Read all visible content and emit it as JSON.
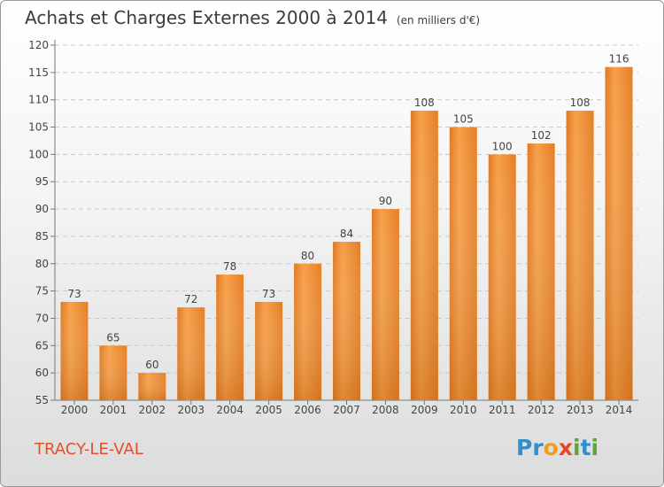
{
  "chart_data": {
    "type": "bar",
    "title": "Achats et Charges Externes 2000 à 2014",
    "subtitle": "(en milliers d'€)",
    "xlabel": "",
    "ylabel": "",
    "categories": [
      "2000",
      "2001",
      "2002",
      "2003",
      "2004",
      "2005",
      "2006",
      "2007",
      "2008",
      "2009",
      "2010",
      "2011",
      "2012",
      "2013",
      "2014"
    ],
    "values": [
      73,
      65,
      60,
      72,
      78,
      73,
      80,
      84,
      90,
      108,
      105,
      100,
      102,
      108,
      116
    ],
    "ylim": [
      55,
      120
    ],
    "yticks": [
      55,
      60,
      65,
      70,
      75,
      80,
      85,
      90,
      95,
      100,
      105,
      110,
      115,
      120
    ],
    "grid": true,
    "bar_color": "#f0923a"
  },
  "footer": {
    "commune": "TRACY-LE-VAL",
    "logo_letters": [
      {
        "ch": "P",
        "color": "#2f8fd0"
      },
      {
        "ch": "r",
        "color": "#2f8fd0"
      },
      {
        "ch": "o",
        "color": "#f39c1e"
      },
      {
        "ch": "x",
        "color": "#e24a2a"
      },
      {
        "ch": "i",
        "color": "#5aa83a"
      },
      {
        "ch": "t",
        "color": "#2f8fd0"
      },
      {
        "ch": "i",
        "color": "#5aa83a"
      }
    ]
  }
}
